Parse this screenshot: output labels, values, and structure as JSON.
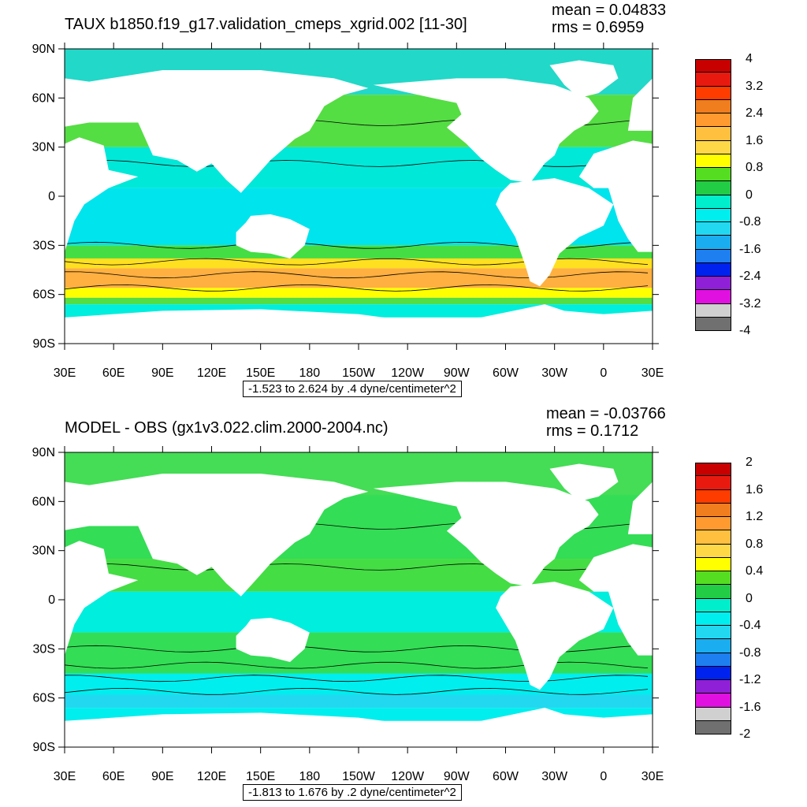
{
  "panels": [
    {
      "title": "TAUX b1850.f19_g17.validation_cmeps_xgrid.002 [11-30]",
      "mean_text": "mean = 0.04833",
      "rms_text": "rms = 0.6959",
      "info_text": "-1.523 to 2.624 by .4 dyne/centimeter^2",
      "lat_labels": [
        "90N",
        "60N",
        "30N",
        "0",
        "30S",
        "60S",
        "90S"
      ],
      "lon_labels": [
        "30E",
        "60E",
        "90E",
        "120E",
        "150E",
        "180",
        "150W",
        "120W",
        "90W",
        "60W",
        "30W",
        "0",
        "30E"
      ],
      "colorbar_labels": [
        "4",
        "3.2",
        "2.4",
        "1.6",
        "0.8",
        "0",
        "-0.8",
        "-1.6",
        "-2.4",
        "-3.2",
        "-4"
      ],
      "colorbar_colors": [
        "#c80000",
        "#e81a10",
        "#ff3c00",
        "#f07d1e",
        "#ff9a30",
        "#ffc040",
        "#ffd848",
        "#ffff00",
        "#55dd22",
        "#22cc44",
        "#00eecc",
        "#00eeee",
        "#22d8f0",
        "#1aaef0",
        "#1e7ff0",
        "#0022ee",
        "#9020d8",
        "#e010e0",
        "#d0d0d0",
        "#707070"
      ],
      "bands": [
        {
          "lat_top": 90,
          "lat_bot": 62,
          "color": "#22d8c8"
        },
        {
          "lat_top": 62,
          "lat_bot": 30,
          "color": "#55dd44"
        },
        {
          "lat_top": 30,
          "lat_bot": 5,
          "color": "#00e8d8"
        },
        {
          "lat_top": 5,
          "lat_bot": -30,
          "color": "#00e4ee"
        },
        {
          "lat_top": -30,
          "lat_bot": -38,
          "color": "#44dd44"
        },
        {
          "lat_top": -38,
          "lat_bot": -44,
          "color": "#ffe020"
        },
        {
          "lat_top": -44,
          "lat_bot": -56,
          "color": "#ffb040"
        },
        {
          "lat_top": -56,
          "lat_bot": -62,
          "color": "#ffff00"
        },
        {
          "lat_top": -62,
          "lat_bot": -66,
          "color": "#55dd44"
        },
        {
          "lat_top": -66,
          "lat_bot": -74,
          "color": "#00eedd"
        }
      ]
    },
    {
      "title": "MODEL - OBS (gx1v3.022.clim.2000-2004.nc)",
      "mean_text": "mean = -0.03766",
      "rms_text": "rms = 0.1712",
      "info_text": "-1.813 to 1.676 by .2 dyne/centimeter^2",
      "lat_labels": [
        "90N",
        "60N",
        "30N",
        "0",
        "30S",
        "60S",
        "90S"
      ],
      "lon_labels": [
        "30E",
        "60E",
        "90E",
        "120E",
        "150E",
        "180",
        "150W",
        "120W",
        "90W",
        "60W",
        "30W",
        "0",
        "30E"
      ],
      "colorbar_labels": [
        "2",
        "1.6",
        "1.2",
        "0.8",
        "0.4",
        "0",
        "-0.4",
        "-0.8",
        "-1.2",
        "-1.6",
        "-2"
      ],
      "colorbar_colors": [
        "#c80000",
        "#e81a10",
        "#ff3c00",
        "#f07d1e",
        "#ff9a30",
        "#ffc040",
        "#ffd848",
        "#ffff00",
        "#55dd22",
        "#22cc44",
        "#00eecc",
        "#00eeee",
        "#22d8f0",
        "#1aaef0",
        "#1e7ff0",
        "#0022ee",
        "#9020d8",
        "#e010e0",
        "#d0d0d0",
        "#707070"
      ],
      "bands": [
        {
          "lat_top": 90,
          "lat_bot": 64,
          "color": "#44dd55"
        },
        {
          "lat_top": 64,
          "lat_bot": 25,
          "color": "#33dd55"
        },
        {
          "lat_top": 25,
          "lat_bot": 5,
          "color": "#44dd44"
        },
        {
          "lat_top": 5,
          "lat_bot": -20,
          "color": "#00eedd"
        },
        {
          "lat_top": -20,
          "lat_bot": -45,
          "color": "#33dd55"
        },
        {
          "lat_top": -45,
          "lat_bot": -58,
          "color": "#00eeee"
        },
        {
          "lat_top": -58,
          "lat_bot": -66,
          "color": "#22d8f0"
        },
        {
          "lat_top": -66,
          "lat_bot": -74,
          "color": "#00eeee"
        }
      ]
    }
  ]
}
